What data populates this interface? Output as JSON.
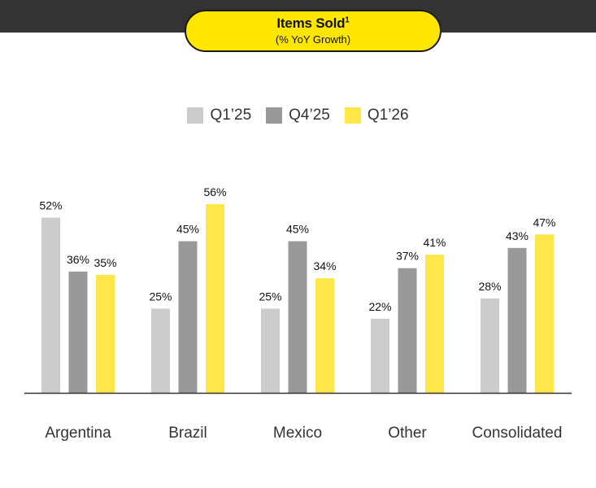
{
  "header": {
    "title": "Items Sold",
    "title_footnote": "1",
    "subtitle": "(% YoY Growth)"
  },
  "colors": {
    "header_band": "#333333",
    "pill": "#ffe600",
    "baseline": "#333333"
  },
  "chart_data": {
    "type": "bar",
    "categories": [
      "Argentina",
      "Brazil",
      "Mexico",
      "Other",
      "Consolidated"
    ],
    "series": [
      {
        "name": "Q1’25",
        "color": "#cccccc",
        "values": [
          52,
          25,
          25,
          22,
          28
        ],
        "labels": [
          "52%",
          "25%",
          "25%",
          "22%",
          "28%"
        ]
      },
      {
        "name": "Q4’25",
        "color": "#999999",
        "values": [
          36,
          45,
          45,
          37,
          43
        ],
        "labels": [
          "36%",
          "45%",
          "45%",
          "37%",
          "43%"
        ]
      },
      {
        "name": "Q1’26",
        "color": "#ffe74a",
        "values": [
          35,
          56,
          34,
          41,
          47
        ],
        "labels": [
          "35%",
          "56%",
          "34%",
          "41%",
          "47%"
        ]
      }
    ],
    "ylim": [
      0,
      56
    ],
    "grid": false,
    "legend": "top-center"
  }
}
